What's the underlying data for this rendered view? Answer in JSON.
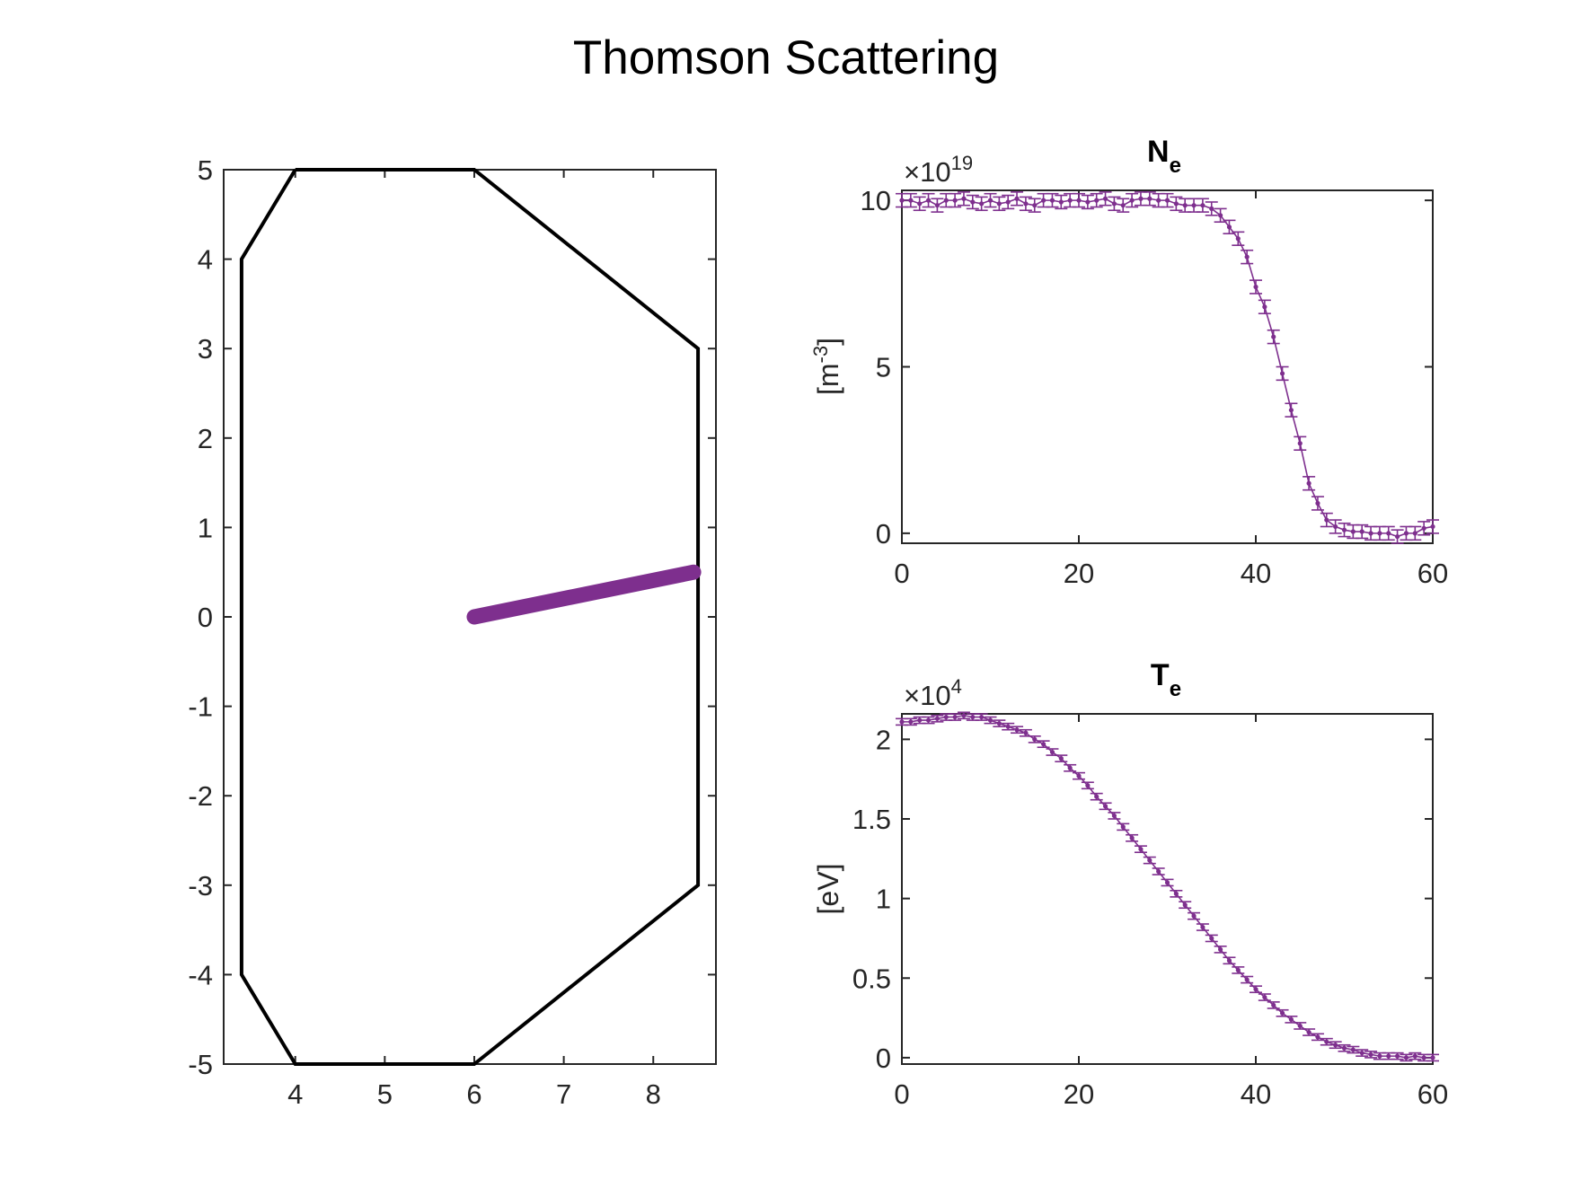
{
  "figure": {
    "title": "Thomson Scattering"
  },
  "chart_data": [
    {
      "type": "line",
      "xlim": [
        3.2,
        8.7
      ],
      "ylim": [
        -5,
        5
      ],
      "xticks": [
        4,
        5,
        6,
        7,
        8
      ],
      "yticks": [
        5,
        4,
        3,
        2,
        1,
        0,
        -1,
        -2,
        -3,
        -4,
        -5
      ],
      "series": [
        {
          "color": "#000000",
          "points": [
            [
              4,
              5
            ],
            [
              6,
              5
            ],
            [
              8.5,
              3
            ],
            [
              8.5,
              -3
            ],
            [
              6,
              -5
            ],
            [
              4,
              -5
            ],
            [
              3.4,
              -4
            ],
            [
              3.4,
              4
            ],
            [
              4,
              5
            ]
          ]
        },
        {
          "color": "#7e2f8e",
          "points": [
            [
              6,
              0
            ],
            [
              8.45,
              0.5
            ]
          ]
        }
      ]
    },
    {
      "type": "line",
      "title": "N",
      "title_sub": "e",
      "ylabel": "[m",
      "ylabel_sup": "-3",
      "ylabel_end": "]",
      "exponent_label": "×10",
      "exponent_power": "19",
      "xlim": [
        0,
        60
      ],
      "ylim": [
        -0.3,
        10.3
      ],
      "xticks": [
        0,
        20,
        40,
        60
      ],
      "yticks": [
        10,
        5,
        0
      ],
      "color": "#7e2f8e",
      "error_bar": 0.2,
      "x": [
        0,
        1,
        2,
        3,
        4,
        5,
        6,
        7,
        8,
        9,
        10,
        11,
        12,
        13,
        14,
        15,
        16,
        17,
        18,
        19,
        20,
        21,
        22,
        23,
        24,
        25,
        26,
        27,
        28,
        29,
        30,
        31,
        32,
        33,
        34,
        35,
        36,
        37,
        38,
        39,
        40,
        41,
        42,
        43,
        44,
        45,
        46,
        47,
        48,
        49,
        50,
        51,
        52,
        53,
        54,
        55,
        56,
        57,
        58,
        59,
        60
      ],
      "y": [
        10.0,
        10.0,
        9.9,
        10.0,
        9.85,
        10.0,
        10.0,
        10.05,
        9.95,
        9.9,
        10.0,
        9.9,
        9.95,
        10.05,
        9.9,
        9.85,
        10.0,
        10.0,
        9.95,
        10.0,
        10.0,
        9.95,
        10.0,
        10.05,
        9.9,
        9.85,
        10.0,
        10.05,
        10.05,
        10.0,
        10.0,
        9.9,
        9.85,
        9.85,
        9.85,
        9.75,
        9.55,
        9.2,
        8.85,
        8.3,
        7.4,
        6.8,
        5.9,
        4.8,
        3.7,
        2.7,
        1.5,
        0.9,
        0.4,
        0.2,
        0.1,
        0.05,
        0.05,
        0.0,
        0.0,
        0.0,
        -0.1,
        0.0,
        0.0,
        0.15,
        0.2
      ]
    },
    {
      "type": "line",
      "title": "T",
      "title_sub": "e",
      "ylabel": "[eV]",
      "exponent_label": "×10",
      "exponent_power": "4",
      "xlim": [
        0,
        60
      ],
      "ylim": [
        -0.04,
        2.16
      ],
      "xticks": [
        0,
        20,
        40,
        60
      ],
      "yticks": [
        2,
        1.5,
        1,
        0.5,
        0
      ],
      "color": "#7e2f8e",
      "error_bar": 0.02,
      "x": [
        0,
        1,
        2,
        3,
        4,
        5,
        6,
        7,
        8,
        9,
        10,
        11,
        12,
        13,
        14,
        15,
        16,
        17,
        18,
        19,
        20,
        21,
        22,
        23,
        24,
        25,
        26,
        27,
        28,
        29,
        30,
        31,
        32,
        33,
        34,
        35,
        36,
        37,
        38,
        39,
        40,
        41,
        42,
        43,
        44,
        45,
        46,
        47,
        48,
        49,
        50,
        51,
        52,
        53,
        54,
        55,
        56,
        57,
        58,
        59,
        60
      ],
      "y": [
        2.11,
        2.11,
        2.12,
        2.12,
        2.13,
        2.14,
        2.14,
        2.15,
        2.14,
        2.14,
        2.12,
        2.1,
        2.08,
        2.06,
        2.04,
        2.0,
        1.97,
        1.92,
        1.88,
        1.82,
        1.77,
        1.71,
        1.64,
        1.58,
        1.52,
        1.45,
        1.38,
        1.31,
        1.24,
        1.17,
        1.1,
        1.03,
        0.96,
        0.89,
        0.82,
        0.75,
        0.68,
        0.61,
        0.55,
        0.49,
        0.43,
        0.38,
        0.33,
        0.28,
        0.24,
        0.2,
        0.16,
        0.13,
        0.1,
        0.08,
        0.06,
        0.05,
        0.03,
        0.02,
        0.01,
        0.01,
        0.01,
        0.0,
        0.01,
        0.0,
        0.0
      ]
    }
  ]
}
